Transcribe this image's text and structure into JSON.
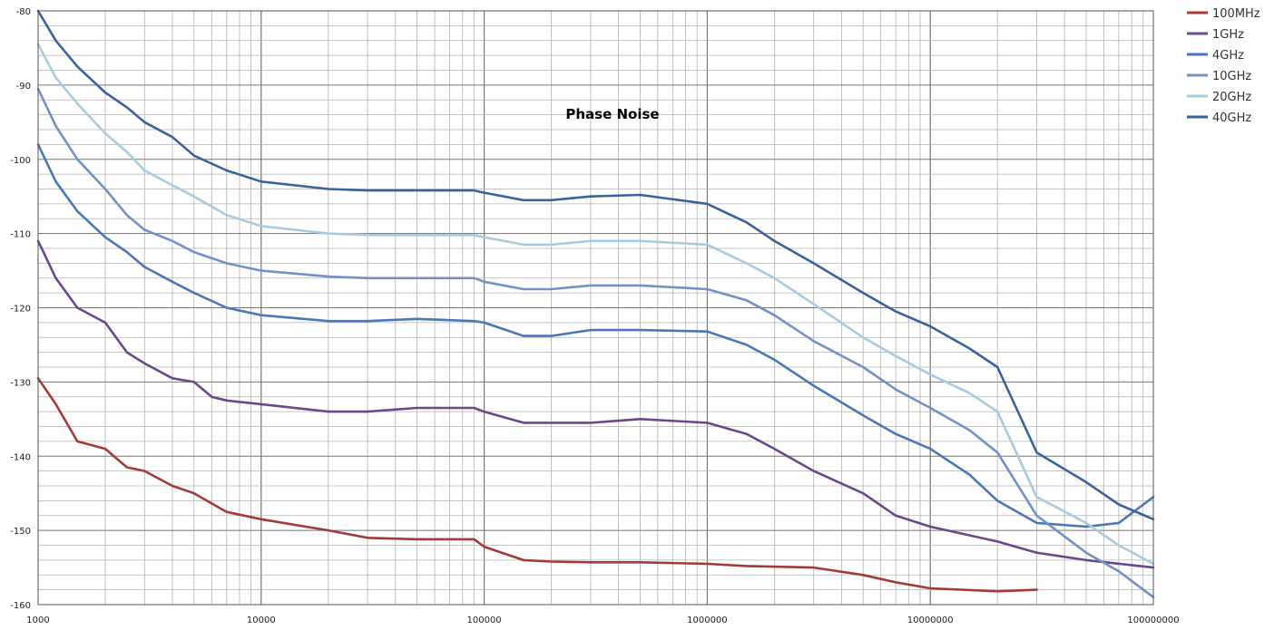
{
  "chart_data": {
    "type": "line",
    "title": "Phase Noise",
    "xlabel": "",
    "ylabel": "",
    "xscale": "log",
    "xlim": [
      1000,
      100000000
    ],
    "ylim": [
      -160,
      -80
    ],
    "grid": true,
    "legend_position": "right",
    "xticks": [
      "1000",
      "10000",
      "100000",
      "1000000",
      "10000000",
      "100000000"
    ],
    "yticks": [
      "-80",
      "-90",
      "-100",
      "-110",
      "-120",
      "-130",
      "-140",
      "-150",
      "-160"
    ],
    "series": [
      {
        "name": "100MHz",
        "color": "#a33b38",
        "x": [
          1000,
          1200,
          1500,
          2000,
          2500,
          3000,
          4000,
          5000,
          7000,
          10000,
          20000,
          30000,
          50000,
          90000,
          100000,
          150000,
          200000,
          300000,
          500000,
          1000000,
          1500000,
          3000000,
          5000000,
          7000000,
          10000000,
          20000000,
          30000000
        ],
        "y": [
          -129.5,
          -133,
          -138,
          -139,
          -141.5,
          -142,
          -144,
          -145,
          -147.5,
          -148.5,
          -150,
          -151,
          -151.2,
          -151.2,
          -152.2,
          -154,
          -154.2,
          -154.3,
          -154.3,
          -154.5,
          -154.8,
          -155,
          -156,
          -157,
          -157.8,
          -158.2,
          -158
        ]
      },
      {
        "name": "1GHz",
        "color": "#6a4a8c",
        "x": [
          1000,
          1200,
          1500,
          2000,
          2500,
          3000,
          4000,
          5000,
          6000,
          7000,
          10000,
          20000,
          30000,
          50000,
          90000,
          100000,
          150000,
          200000,
          300000,
          500000,
          1000000,
          1500000,
          2000000,
          3000000,
          5000000,
          7000000,
          10000000,
          20000000,
          30000000,
          50000000,
          100000000
        ],
        "y": [
          -111,
          -116,
          -120,
          -122,
          -126,
          -127.5,
          -129.5,
          -130,
          -132,
          -132.5,
          -133,
          -134,
          -134,
          -133.5,
          -133.5,
          -134,
          -135.5,
          -135.5,
          -135.5,
          -135,
          -135.5,
          -137,
          -139,
          -142,
          -145,
          -148,
          -149.5,
          -151.5,
          -153,
          -154,
          -155
        ]
      },
      {
        "name": "4GHz",
        "color": "#4a78b8",
        "x": [
          1000,
          1200,
          1500,
          2000,
          2500,
          3000,
          4000,
          5000,
          7000,
          10000,
          20000,
          30000,
          50000,
          90000,
          100000,
          150000,
          200000,
          300000,
          500000,
          1000000,
          1500000,
          2000000,
          3000000,
          5000000,
          7000000,
          10000000,
          15000000,
          20000000,
          30000000,
          50000000,
          70000000,
          100000000
        ],
        "y": [
          -98,
          -103,
          -107,
          -110.5,
          -112.5,
          -114.5,
          -116.5,
          -118,
          -120,
          -121,
          -121.8,
          -121.8,
          -121.5,
          -121.8,
          -122,
          -123.8,
          -123.8,
          -123,
          -123,
          -123.2,
          -125,
          -127,
          -130.5,
          -134.5,
          -137,
          -139,
          -142.5,
          -146,
          -149,
          -149.5,
          -149,
          -145.5
        ]
      },
      {
        "name": "10GHz",
        "color": "#7392c8",
        "x": [
          1000,
          1200,
          1500,
          2000,
          2500,
          3000,
          4000,
          5000,
          7000,
          10000,
          20000,
          30000,
          50000,
          90000,
          100000,
          150000,
          200000,
          300000,
          500000,
          1000000,
          1500000,
          2000000,
          3000000,
          5000000,
          7000000,
          10000000,
          15000000,
          20000000,
          30000000,
          50000000,
          70000000,
          100000000
        ],
        "y": [
          -90.5,
          -95.5,
          -100,
          -104,
          -107.5,
          -109.5,
          -111,
          -112.5,
          -114,
          -115,
          -115.8,
          -116,
          -116,
          -116,
          -116.5,
          -117.5,
          -117.5,
          -117,
          -117,
          -117.5,
          -119,
          -121,
          -124.5,
          -128,
          -131,
          -133.5,
          -136.5,
          -139.5,
          -148,
          -153,
          -155.5,
          -159
        ]
      },
      {
        "name": "20GHz",
        "color": "#a9cbe0",
        "x": [
          1000,
          1200,
          1500,
          2000,
          2500,
          3000,
          4000,
          5000,
          7000,
          10000,
          20000,
          30000,
          50000,
          90000,
          100000,
          150000,
          200000,
          300000,
          500000,
          1000000,
          1500000,
          2000000,
          3000000,
          5000000,
          7000000,
          10000000,
          15000000,
          20000000,
          30000000,
          50000000,
          70000000,
          100000000
        ],
        "y": [
          -84.5,
          -89,
          -92.5,
          -96.5,
          -99,
          -101.5,
          -103.5,
          -105,
          -107.5,
          -109,
          -110,
          -110.2,
          -110.2,
          -110.2,
          -110.5,
          -111.5,
          -111.5,
          -111,
          -111,
          -111.5,
          -114,
          -116,
          -119.5,
          -124,
          -126.5,
          -129,
          -131.5,
          -134,
          -145.5,
          -149,
          -152,
          -154.5
        ]
      },
      {
        "name": "40GHz",
        "color": "#3a64a0",
        "x": [
          1000,
          1200,
          1500,
          2000,
          2500,
          3000,
          4000,
          5000,
          7000,
          10000,
          20000,
          30000,
          50000,
          90000,
          100000,
          150000,
          200000,
          300000,
          500000,
          1000000,
          1500000,
          2000000,
          3000000,
          5000000,
          7000000,
          10000000,
          15000000,
          20000000,
          30000000,
          50000000,
          70000000,
          100000000
        ],
        "y": [
          -80,
          -84,
          -87.5,
          -91,
          -93,
          -95,
          -97,
          -99.5,
          -101.5,
          -103,
          -104,
          -104.2,
          -104.2,
          -104.2,
          -104.5,
          -105.5,
          -105.5,
          -105,
          -104.8,
          -106,
          -108.5,
          -111,
          -114,
          -118,
          -120.5,
          -122.5,
          -125.5,
          -128,
          -139.5,
          -143.5,
          -146.5,
          -148.5
        ]
      }
    ]
  }
}
